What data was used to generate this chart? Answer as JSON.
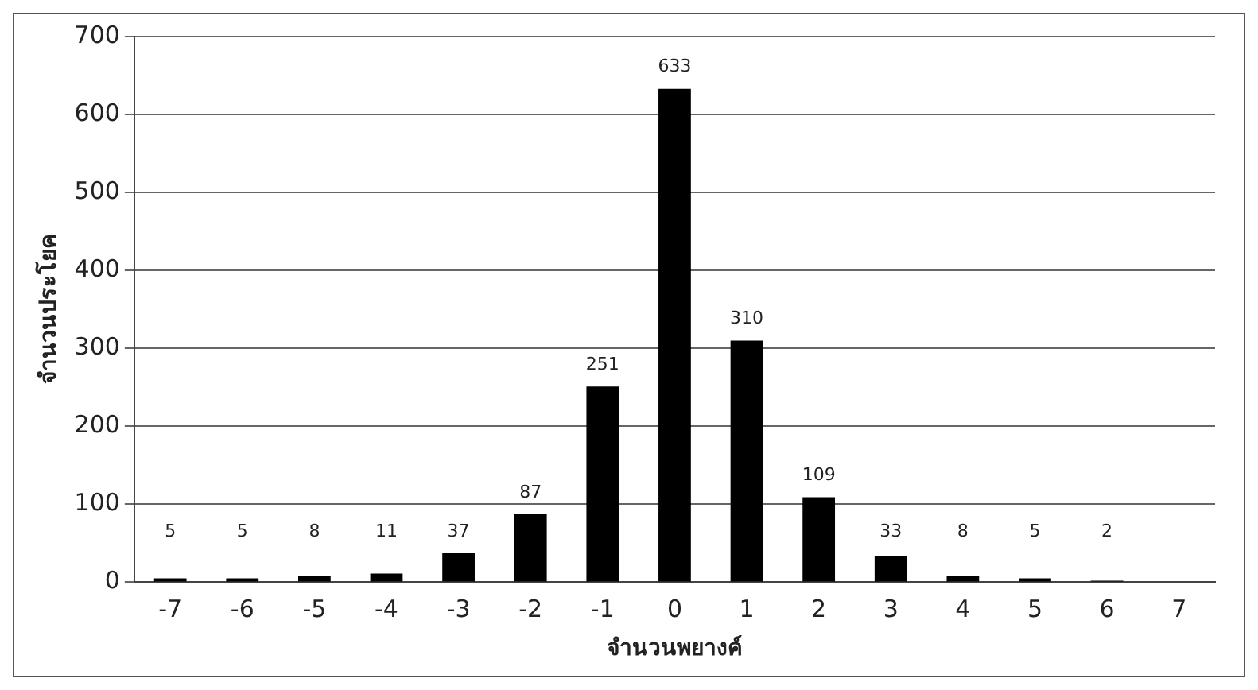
{
  "chart_data": {
    "type": "bar",
    "xlabel": "จำนวนพยางค์",
    "ylabel": "จำนวนประโยค",
    "categories": [
      "-7",
      "-6",
      "-5",
      "-4",
      "-3",
      "-2",
      "-1",
      "0",
      "1",
      "2",
      "3",
      "4",
      "5",
      "6",
      "7"
    ],
    "values": [
      5,
      5,
      8,
      11,
      37,
      87,
      251,
      633,
      310,
      109,
      33,
      8,
      5,
      2,
      null
    ],
    "color": "#000000",
    "ylim": [
      0,
      700
    ],
    "yticks": [
      0,
      100,
      200,
      300,
      400,
      500,
      600,
      700
    ],
    "grid": "y",
    "legend": false,
    "data_labels": true
  }
}
